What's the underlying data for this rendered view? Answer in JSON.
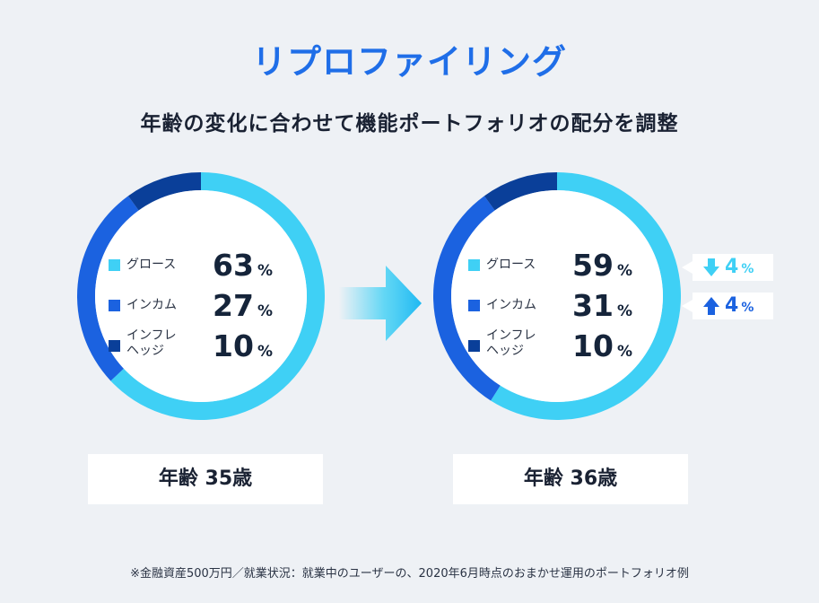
{
  "title": "リプロファイリング",
  "subtitle": "年齢の変化に合わせて機能ポートフォリオの配分を調整",
  "colors": {
    "growth": "#3fd0f5",
    "income": "#1b62e0",
    "inflation_hedge": "#0a3f99",
    "title": "#1f6ee8"
  },
  "chart_data": [
    {
      "type": "pie",
      "title": "年齢 35歳",
      "categories": [
        "グロース",
        "インカム",
        "インフレヘッジ"
      ],
      "values": [
        63,
        27,
        10
      ],
      "labels": [
        "63",
        "27",
        "10"
      ],
      "unit": "%"
    },
    {
      "type": "pie",
      "title": "年齢 36歳",
      "categories": [
        "グロース",
        "インカム",
        "インフレヘッジ"
      ],
      "values": [
        59,
        31,
        10
      ],
      "labels": [
        "59",
        "31",
        "10"
      ],
      "unit": "%",
      "changes": [
        {
          "category": "グロース",
          "direction": "down",
          "value": "4",
          "unit": "%"
        },
        {
          "category": "インカム",
          "direction": "up",
          "value": "4",
          "unit": "%"
        }
      ]
    }
  ],
  "legend_labels": {
    "growth": "グロース",
    "income": "インカム",
    "hedge_line1": "インフレ",
    "hedge_line2": "ヘッジ"
  },
  "age_labels": [
    "年齢 35歳",
    "年齢 36歳"
  ],
  "icons": {
    "arrow": "arrow-right-icon",
    "down": "arrow-down-icon",
    "up": "arrow-up-icon"
  },
  "footnote": "※金融資産500万円／就業状況：就業中のユーザーの、2020年6月時点のおまかせ運用のポートフォリオ例"
}
